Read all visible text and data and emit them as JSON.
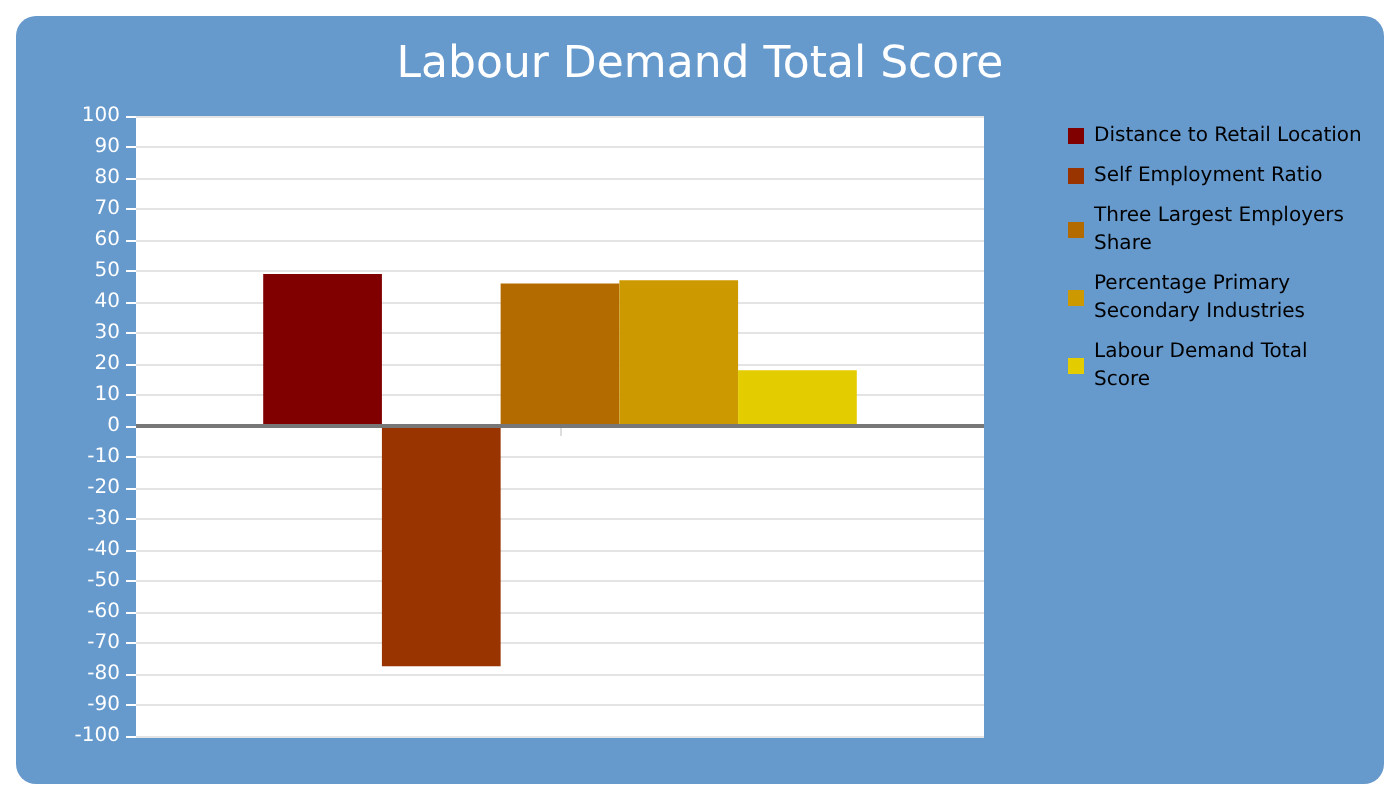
{
  "chart_data": {
    "type": "bar",
    "title": "Labour Demand Total Score",
    "categories": [
      null
    ],
    "series": [
      {
        "name": "Distance to Retail Location",
        "color": "#800000",
        "values": [
          49
        ]
      },
      {
        "name": "Self Employment Ratio",
        "color": "#993300",
        "values": [
          -77.5
        ]
      },
      {
        "name": "Three Largest Employers Share",
        "color": "#b36b00",
        "values": [
          46
        ]
      },
      {
        "name": "Percentage Primary Secondary Industries",
        "color": "#cc9900",
        "values": [
          47
        ]
      },
      {
        "name": "Labour Demand Total Score",
        "color": "#e3cc00",
        "values": [
          18
        ]
      }
    ],
    "ylim": [
      -100,
      100
    ],
    "yticks": [
      -100,
      -90,
      -80,
      -70,
      -60,
      -50,
      -40,
      -30,
      -20,
      -10,
      0,
      10,
      20,
      30,
      40,
      50,
      60,
      70,
      80,
      90,
      100
    ],
    "grid": "y",
    "legend": "right"
  }
}
